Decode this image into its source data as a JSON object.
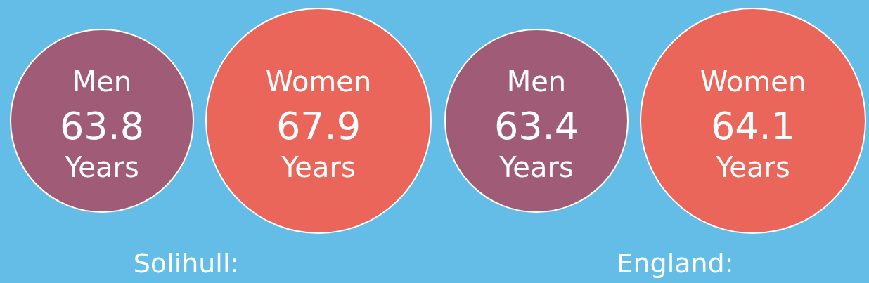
{
  "chart_data": [
    {
      "type": "other",
      "title": "Solihull:",
      "categories": [
        "Men",
        "Women"
      ],
      "values": [
        63.8,
        67.9
      ],
      "value_labels": [
        "63.8 Years",
        "67.9 Years"
      ],
      "colors": [
        "#a05c77",
        "#ea665b"
      ]
    },
    {
      "type": "other",
      "title": "England:",
      "categories": [
        "Men",
        "Women"
      ],
      "values": [
        63.4,
        64.1
      ],
      "value_labels": [
        "63.4 Years",
        "64.1 Years"
      ],
      "colors": [
        "#a05c77",
        "#ea665b"
      ]
    }
  ]
}
